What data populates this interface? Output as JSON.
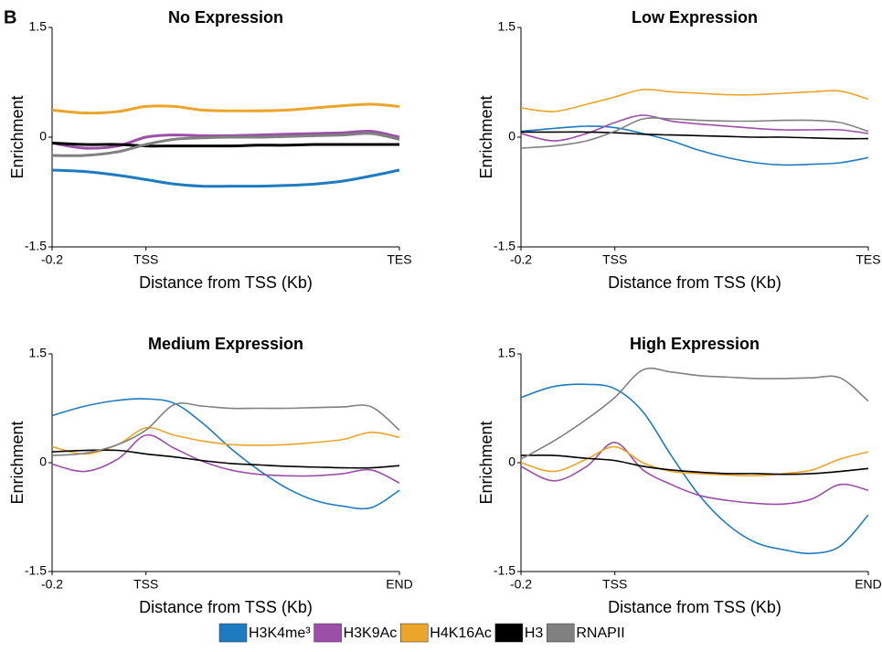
{
  "panel_label": "B",
  "chart_data": [
    {
      "type": "line",
      "title": "No Expression",
      "xlabel": "Distance from TSS (Kb)",
      "ylabel": "Enrichment",
      "x": [
        -0.2,
        -0.13,
        -0.06,
        0,
        0.06,
        0.12,
        0.18,
        0.24,
        0.3,
        0.36,
        0.42,
        0.48,
        0.54
      ],
      "xlim": [
        -0.2,
        0.54
      ],
      "xticks": [
        -0.2,
        {
          "value": 0,
          "label": "TSS"
        },
        {
          "value": 0.54,
          "label": "TES"
        }
      ],
      "ylim": [
        -1.5,
        1.5
      ],
      "yticks": [
        -1.5,
        0,
        1.5
      ],
      "series": [
        {
          "name": "H3K4me³",
          "color": "#1f7bbf",
          "values": [
            -0.45,
            -0.47,
            -0.52,
            -0.58,
            -0.64,
            -0.67,
            -0.67,
            -0.67,
            -0.66,
            -0.64,
            -0.6,
            -0.53,
            -0.45
          ]
        },
        {
          "name": "H3K9Ac",
          "color": "#9b4fa8",
          "values": [
            -0.08,
            -0.15,
            -0.12,
            0.0,
            0.03,
            0.02,
            0.02,
            0.03,
            0.04,
            0.05,
            0.06,
            0.08,
            0.0
          ]
        },
        {
          "name": "H4K16Ac",
          "color": "#eba52a",
          "values": [
            0.37,
            0.33,
            0.35,
            0.42,
            0.42,
            0.37,
            0.36,
            0.36,
            0.37,
            0.4,
            0.43,
            0.45,
            0.42
          ]
        },
        {
          "name": "H3",
          "color": "#000000",
          "values": [
            -0.08,
            -0.1,
            -0.1,
            -0.12,
            -0.12,
            -0.12,
            -0.12,
            -0.11,
            -0.11,
            -0.1,
            -0.1,
            -0.1,
            -0.1
          ]
        },
        {
          "name": "RNAPII",
          "color": "#808080",
          "values": [
            -0.25,
            -0.25,
            -0.2,
            -0.1,
            -0.03,
            -0.01,
            0.0,
            0.0,
            0.01,
            0.02,
            0.03,
            0.05,
            -0.03
          ]
        }
      ]
    },
    {
      "type": "line",
      "title": "Low Expression",
      "xlabel": "Distance from TSS (Kb)",
      "ylabel": "Enrichment",
      "x": [
        -0.2,
        -0.13,
        -0.06,
        0,
        0.06,
        0.12,
        0.18,
        0.24,
        0.3,
        0.36,
        0.42,
        0.48,
        0.54
      ],
      "xlim": [
        -0.2,
        0.54
      ],
      "xticks": [
        -0.2,
        {
          "value": 0,
          "label": "TSS"
        },
        {
          "value": 0.54,
          "label": "TES"
        }
      ],
      "ylim": [
        -1.5,
        1.5
      ],
      "yticks": [
        -1.5,
        0,
        1.5
      ],
      "series": [
        {
          "name": "H3K4me³",
          "color": "#1f7bbf",
          "values": [
            0.08,
            0.12,
            0.15,
            0.13,
            0.05,
            -0.05,
            -0.18,
            -0.28,
            -0.35,
            -0.38,
            -0.37,
            -0.35,
            -0.28
          ]
        },
        {
          "name": "H3K9Ac",
          "color": "#9b4fa8",
          "values": [
            0.05,
            -0.05,
            0.05,
            0.2,
            0.3,
            0.22,
            0.18,
            0.15,
            0.12,
            0.1,
            0.1,
            0.1,
            0.05
          ]
        },
        {
          "name": "H4K16Ac",
          "color": "#eba52a",
          "values": [
            0.4,
            0.35,
            0.45,
            0.55,
            0.65,
            0.62,
            0.6,
            0.58,
            0.58,
            0.6,
            0.62,
            0.63,
            0.52
          ]
        },
        {
          "name": "H3",
          "color": "#000000",
          "values": [
            0.07,
            0.07,
            0.07,
            0.06,
            0.04,
            0.03,
            0.02,
            0.01,
            0.0,
            0.0,
            -0.01,
            -0.02,
            -0.02
          ]
        },
        {
          "name": "RNAPII",
          "color": "#808080",
          "values": [
            -0.15,
            -0.12,
            -0.05,
            0.08,
            0.25,
            0.25,
            0.23,
            0.22,
            0.22,
            0.23,
            0.23,
            0.2,
            0.08
          ]
        }
      ]
    },
    {
      "type": "line",
      "title": "Medium Expression",
      "xlabel": "Distance from TSS (Kb)",
      "ylabel": "Enrichment",
      "x": [
        -0.2,
        -0.13,
        -0.06,
        0,
        0.06,
        0.12,
        0.18,
        0.24,
        0.3,
        0.36,
        0.42,
        0.48,
        0.54
      ],
      "xlim": [
        -0.2,
        0.54
      ],
      "xticks": [
        -0.2,
        {
          "value": 0,
          "label": "TSS"
        },
        {
          "value": 0.54,
          "label": "END"
        }
      ],
      "ylim": [
        -1.5,
        1.5
      ],
      "yticks": [
        -1.5,
        0,
        1.5
      ],
      "series": [
        {
          "name": "H3K4me³",
          "color": "#1f7bbf",
          "values": [
            0.65,
            0.78,
            0.86,
            0.88,
            0.82,
            0.55,
            0.2,
            -0.1,
            -0.35,
            -0.52,
            -0.6,
            -0.62,
            -0.38
          ]
        },
        {
          "name": "H3K9Ac",
          "color": "#9b4fa8",
          "values": [
            -0.02,
            -0.12,
            0.05,
            0.38,
            0.2,
            0.02,
            -0.1,
            -0.16,
            -0.18,
            -0.18,
            -0.15,
            -0.1,
            -0.28
          ]
        },
        {
          "name": "H4K16Ac",
          "color": "#eba52a",
          "values": [
            0.22,
            0.12,
            0.25,
            0.48,
            0.38,
            0.3,
            0.25,
            0.24,
            0.25,
            0.28,
            0.32,
            0.42,
            0.35
          ]
        },
        {
          "name": "H3",
          "color": "#000000",
          "values": [
            0.15,
            0.17,
            0.17,
            0.12,
            0.08,
            0.03,
            -0.01,
            -0.03,
            -0.05,
            -0.06,
            -0.07,
            -0.07,
            -0.04
          ]
        },
        {
          "name": "RNAPII",
          "color": "#808080",
          "values": [
            0.1,
            0.13,
            0.25,
            0.45,
            0.8,
            0.78,
            0.75,
            0.75,
            0.75,
            0.76,
            0.77,
            0.77,
            0.45
          ]
        }
      ]
    },
    {
      "type": "line",
      "title": "High Expression",
      "xlabel": "Distance from TSS (Kb)",
      "ylabel": "Enrichment",
      "x": [
        -0.2,
        -0.13,
        -0.06,
        0,
        0.06,
        0.12,
        0.18,
        0.24,
        0.3,
        0.36,
        0.42,
        0.48,
        0.54
      ],
      "xlim": [
        -0.2,
        0.54
      ],
      "xticks": [
        -0.2,
        {
          "value": 0,
          "label": "TSS"
        },
        {
          "value": 0.54,
          "label": "END"
        }
      ],
      "ylim": [
        -1.5,
        1.5
      ],
      "yticks": [
        -1.5,
        0,
        1.5
      ],
      "series": [
        {
          "name": "H3K4me³",
          "color": "#1f7bbf",
          "values": [
            0.9,
            1.05,
            1.08,
            1.02,
            0.7,
            0.1,
            -0.45,
            -0.85,
            -1.1,
            -1.2,
            -1.25,
            -1.15,
            -0.72
          ]
        },
        {
          "name": "H3K9Ac",
          "color": "#9b4fa8",
          "values": [
            -0.05,
            -0.25,
            -0.05,
            0.28,
            -0.1,
            -0.3,
            -0.45,
            -0.52,
            -0.56,
            -0.57,
            -0.5,
            -0.3,
            -0.38
          ]
        },
        {
          "name": "H4K16Ac",
          "color": "#eba52a",
          "values": [
            0.0,
            -0.12,
            0.05,
            0.22,
            0.0,
            -0.12,
            -0.15,
            -0.17,
            -0.18,
            -0.15,
            -0.1,
            0.05,
            0.15
          ]
        },
        {
          "name": "H3",
          "color": "#000000",
          "values": [
            0.1,
            0.1,
            0.06,
            0.03,
            -0.05,
            -0.1,
            -0.13,
            -0.15,
            -0.15,
            -0.16,
            -0.15,
            -0.12,
            -0.08
          ]
        },
        {
          "name": "RNAPII",
          "color": "#808080",
          "values": [
            0.05,
            0.3,
            0.6,
            0.9,
            1.28,
            1.25,
            1.2,
            1.18,
            1.16,
            1.16,
            1.17,
            1.17,
            0.85
          ]
        }
      ]
    }
  ]
}
